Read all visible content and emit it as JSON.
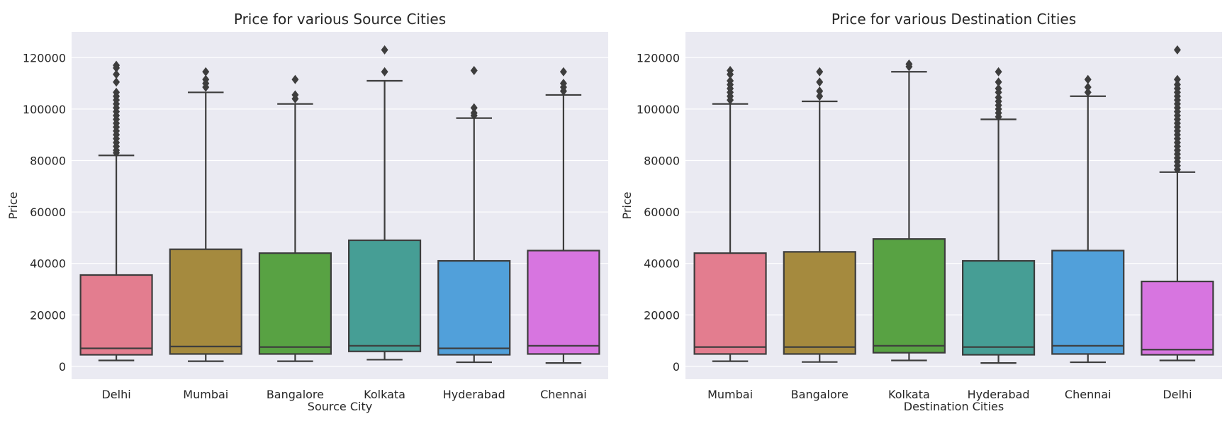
{
  "chart_data": [
    {
      "type": "box",
      "title": "Price for various Source Cities",
      "xlabel": "Source City",
      "ylabel": "Price",
      "ylim": [
        -5000,
        130000
      ],
      "yticks": [
        0,
        20000,
        40000,
        60000,
        80000,
        100000,
        120000
      ],
      "grid": true,
      "boxes": [
        {
          "category": "Delhi",
          "color": "#e37d8f",
          "whislo": 2300,
          "q1": 4500,
          "median": 7000,
          "q3": 35500,
          "whishi": 82000,
          "fliers": [
            83000,
            84000,
            85500,
            87000,
            88500,
            90000,
            91500,
            93000,
            94500,
            96000,
            97500,
            99000,
            100500,
            102000,
            103500,
            105000,
            106500,
            110500,
            113500,
            116000,
            117000
          ]
        },
        {
          "category": "Mumbai",
          "color": "#a58a3e",
          "whislo": 2000,
          "q1": 4800,
          "median": 7700,
          "q3": 45500,
          "whishi": 106500,
          "fliers": [
            108500,
            110000,
            111500,
            114500
          ]
        },
        {
          "category": "Bangalore",
          "color": "#58a243",
          "whislo": 2000,
          "q1": 4800,
          "median": 7500,
          "q3": 44000,
          "whishi": 102000,
          "fliers": [
            104000,
            105500,
            111500
          ]
        },
        {
          "category": "Kolkata",
          "color": "#469e95",
          "whislo": 2600,
          "q1": 5800,
          "median": 8000,
          "q3": 49000,
          "whishi": 111000,
          "fliers": [
            114500,
            123000
          ]
        },
        {
          "category": "Hyderabad",
          "color": "#51a0da",
          "whislo": 1600,
          "q1": 4500,
          "median": 7000,
          "q3": 41000,
          "whishi": 96500,
          "fliers": [
            97500,
            98500,
            100500,
            115000
          ]
        },
        {
          "category": "Chennai",
          "color": "#d775e0",
          "whislo": 1300,
          "q1": 4800,
          "median": 8000,
          "q3": 45000,
          "whishi": 105500,
          "fliers": [
            107000,
            108500,
            110000,
            114500
          ]
        }
      ]
    },
    {
      "type": "box",
      "title": "Price for various Destination Cities",
      "xlabel": "Destination Cities",
      "ylabel": "Price",
      "ylim": [
        -5000,
        130000
      ],
      "yticks": [
        0,
        20000,
        40000,
        60000,
        80000,
        100000,
        120000
      ],
      "grid": true,
      "boxes": [
        {
          "category": "Mumbai",
          "color": "#e37d8f",
          "whislo": 2000,
          "q1": 4800,
          "median": 7500,
          "q3": 44000,
          "whishi": 102000,
          "fliers": [
            103500,
            105000,
            106500,
            108000,
            109500,
            111000,
            113500,
            115000
          ]
        },
        {
          "category": "Bangalore",
          "color": "#a58a3e",
          "whislo": 1700,
          "q1": 4800,
          "median": 7500,
          "q3": 44500,
          "whishi": 103000,
          "fliers": [
            105000,
            107000,
            110500,
            114500
          ]
        },
        {
          "category": "Kolkata",
          "color": "#58a243",
          "whislo": 2300,
          "q1": 5300,
          "median": 8000,
          "q3": 49500,
          "whishi": 114500,
          "fliers": [
            116500,
            117500
          ]
        },
        {
          "category": "Hyderabad",
          "color": "#469e95",
          "whislo": 1300,
          "q1": 4500,
          "median": 7500,
          "q3": 41000,
          "whishi": 96000,
          "fliers": [
            97000,
            98500,
            100000,
            101500,
            103000,
            104500,
            106500,
            108000,
            110500,
            114500
          ]
        },
        {
          "category": "Chennai",
          "color": "#51a0da",
          "whislo": 1600,
          "q1": 4800,
          "median": 8000,
          "q3": 45000,
          "whishi": 105000,
          "fliers": [
            106500,
            108500,
            111500
          ]
        },
        {
          "category": "Delhi",
          "color": "#d775e0",
          "whislo": 2300,
          "q1": 4500,
          "median": 6500,
          "q3": 33000,
          "whishi": 75500,
          "fliers": [
            76500,
            78000,
            79500,
            81000,
            82500,
            84000,
            85500,
            87000,
            88500,
            90000,
            91500,
            93000,
            94500,
            96000,
            97500,
            99000,
            100500,
            102000,
            103500,
            105000,
            106500,
            108000,
            109500,
            111500,
            123000
          ]
        }
      ]
    }
  ]
}
